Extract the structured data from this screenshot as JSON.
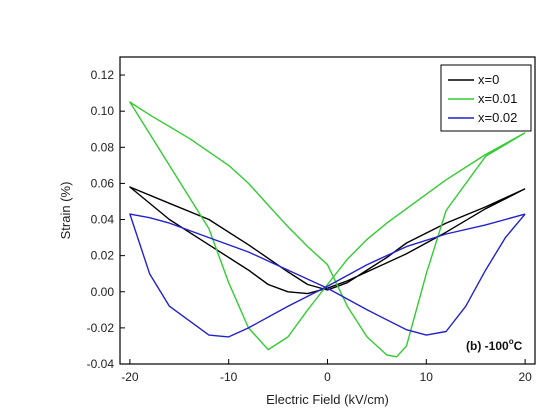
{
  "chart_data": {
    "type": "line",
    "title": "",
    "xlabel": "Electric Field (kV/cm)",
    "ylabel": "Strain (%)",
    "xlim": [
      -21,
      21
    ],
    "ylim": [
      -0.04,
      0.13
    ],
    "xticks": [
      "-20",
      "-10",
      "0",
      "10",
      "20"
    ],
    "xtick_values": [
      -20,
      -10,
      0,
      10,
      20
    ],
    "yticks": [
      "-0.04",
      "-0.02",
      "0.00",
      "0.02",
      "0.04",
      "0.06",
      "0.08",
      "0.10",
      "0.12"
    ],
    "ytick_values": [
      -0.04,
      -0.02,
      0.0,
      0.02,
      0.04,
      0.06,
      0.08,
      0.1,
      0.12
    ],
    "grid": false,
    "legend_position": "top-right",
    "annotation": {
      "text": "(b) -100",
      "degree": "o",
      "unit": "C"
    },
    "series": [
      {
        "name": "x=0",
        "color": "#000000",
        "x": [
          20,
          16,
          12,
          8,
          4,
          2,
          0,
          -2,
          -4,
          -6,
          -8,
          -12,
          -16,
          -20,
          -16,
          -12,
          -8,
          -4,
          -2,
          0,
          2,
          4,
          6,
          8,
          12,
          16,
          20
        ],
        "y": [
          0.057,
          0.046,
          0.033,
          0.021,
          0.011,
          0.006,
          0.002,
          -0.001,
          0.0,
          0.004,
          0.012,
          0.026,
          0.04,
          0.058,
          0.049,
          0.04,
          0.026,
          0.011,
          0.004,
          0.001,
          0.005,
          0.012,
          0.019,
          0.027,
          0.038,
          0.047,
          0.057
        ]
      },
      {
        "name": "x=0.01",
        "color": "#33cc33",
        "x": [
          20,
          16,
          12,
          8,
          6,
          4,
          2,
          0,
          -2,
          -4,
          -6,
          -8,
          -10,
          -12,
          -16,
          -20,
          -18,
          -14,
          -10,
          -8,
          -6,
          -4,
          -2,
          0,
          2,
          4,
          6,
          7,
          8,
          10,
          12,
          16,
          20
        ],
        "y": [
          0.088,
          0.076,
          0.062,
          0.046,
          0.038,
          0.029,
          0.018,
          0.004,
          -0.01,
          -0.025,
          -0.032,
          -0.02,
          0.005,
          0.035,
          0.07,
          0.105,
          0.098,
          0.085,
          0.07,
          0.06,
          0.048,
          0.036,
          0.025,
          0.015,
          -0.008,
          -0.025,
          -0.035,
          -0.036,
          -0.03,
          0.01,
          0.045,
          0.075,
          0.088
        ]
      },
      {
        "name": "x=0.02",
        "color": "#2222cc",
        "x": [
          20,
          18,
          16,
          12,
          8,
          4,
          0,
          -4,
          -8,
          -10,
          -12,
          -16,
          -18,
          -20,
          -18,
          -16,
          -12,
          -8,
          -4,
          0,
          4,
          8,
          10,
          12,
          14,
          16,
          18,
          20
        ],
        "y": [
          0.043,
          0.04,
          0.037,
          0.032,
          0.025,
          0.015,
          0.003,
          -0.008,
          -0.02,
          -0.025,
          -0.024,
          -0.008,
          0.01,
          0.043,
          0.041,
          0.038,
          0.03,
          0.022,
          0.012,
          0.002,
          -0.01,
          -0.021,
          -0.024,
          -0.022,
          -0.008,
          0.012,
          0.03,
          0.043
        ]
      }
    ]
  }
}
